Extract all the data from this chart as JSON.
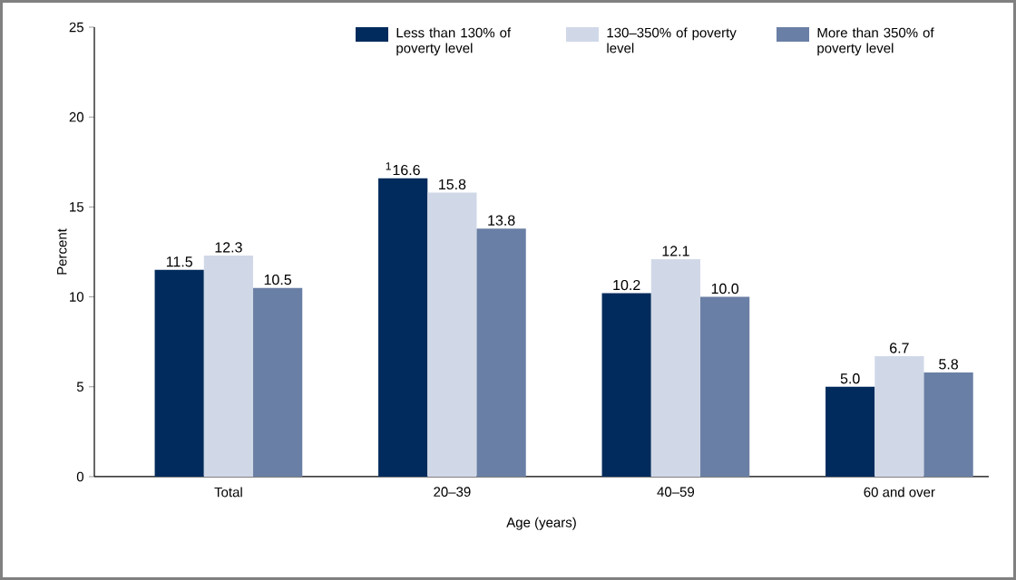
{
  "chart_data": {
    "type": "bar",
    "xlabel": "Age (years)",
    "ylabel": "Percent",
    "categories": [
      "Total",
      "20–39",
      "40–59",
      "60 and over"
    ],
    "series": [
      {
        "name": "Less than 130% of poverty level",
        "color": "#002b5c",
        "values": [
          11.5,
          16.6,
          10.2,
          5.0
        ],
        "value_labels": [
          "11.5",
          "$^{1}$16.6",
          "10.2",
          "5.0"
        ]
      },
      {
        "name": "130–350% of poverty level",
        "color": "#d0d8e8",
        "values": [
          12.3,
          15.8,
          12.1,
          6.7
        ],
        "value_labels": [
          "12.3",
          "15.8",
          "12.1",
          "6.7"
        ]
      },
      {
        "name": "More than 350% of poverty level",
        "color": "#6a7fa5",
        "values": [
          10.5,
          13.8,
          10.0,
          5.8
        ],
        "value_labels": [
          "10.5",
          "13.8",
          "10.0",
          "5.8"
        ]
      }
    ],
    "ylim": [
      0,
      25
    ],
    "yticks": [
      0,
      5,
      10,
      15,
      20,
      25
    ],
    "legend": "top right"
  }
}
